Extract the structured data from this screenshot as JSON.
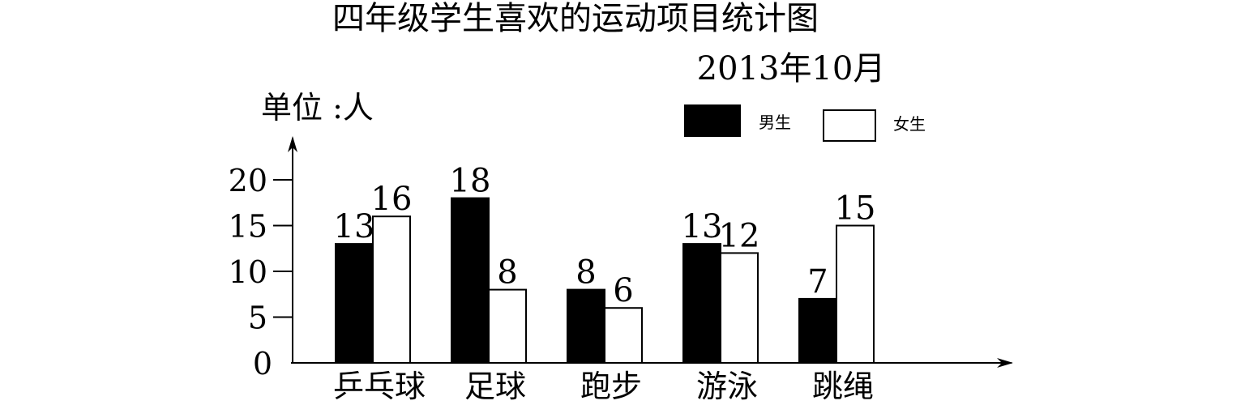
{
  "chart_data": {
    "type": "bar",
    "title": "四年级学生喜欢的运动项目统计图",
    "subtitle": "2013年10月",
    "unit_label": "单位 :人",
    "categories": [
      "乒乓球",
      "足球",
      "跑步",
      "游泳",
      "跳绳"
    ],
    "series": [
      {
        "name": "男生",
        "values": [
          13,
          18,
          8,
          13,
          7
        ],
        "color": "#000000"
      },
      {
        "name": "女生",
        "values": [
          16,
          8,
          6,
          12,
          15
        ],
        "color": "#ffffff"
      }
    ],
    "y_ticks": [
      {
        "value": 0,
        "label": "0"
      },
      {
        "value": 5,
        "label": "5"
      },
      {
        "value": 10,
        "label": "10"
      },
      {
        "value": 15,
        "label": "15"
      },
      {
        "value": 20,
        "label": "20"
      }
    ],
    "ylim": [
      0,
      20
    ],
    "legend_position": "top-right",
    "grid": false
  }
}
